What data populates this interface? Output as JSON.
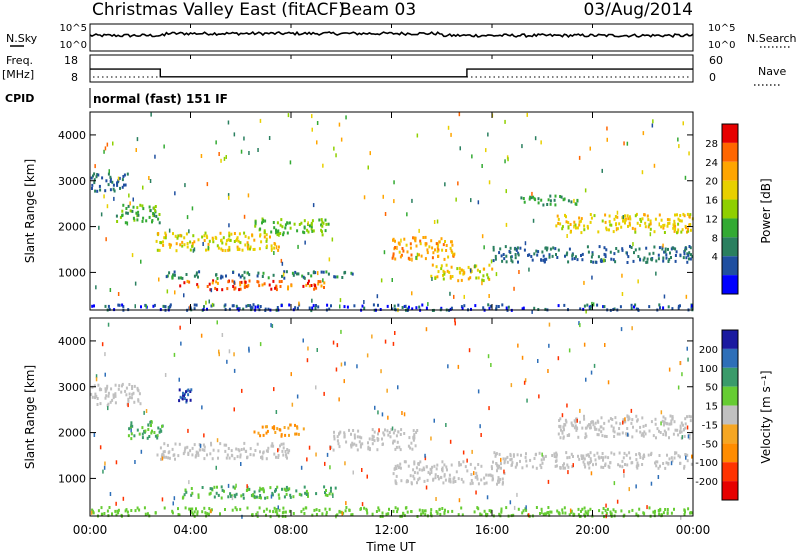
{
  "header": {
    "station": "Christmas Valley East (fitACF)",
    "beam": "Beam 03",
    "date": "03/Aug/2014"
  },
  "panels": {
    "nsky_label": "N.Sky",
    "nsky_ticks": [
      "10^5",
      "10^0"
    ],
    "nsearch_label": "N.Search",
    "nsearch_ticks": [
      "10^5",
      "10^0"
    ],
    "freq_label_line1": "Freq.",
    "freq_label_line2": "[MHz]",
    "freq_ticks": [
      "18",
      "8"
    ],
    "nave_label": "Nave",
    "nave_ticks": [
      "60",
      "0"
    ],
    "cpid_label": "CPID",
    "cpid_text": "normal (fast) 151 IF"
  },
  "power_colorbar": {
    "label": "Power [dB]",
    "ticks": [
      "28",
      "24",
      "20",
      "16",
      "12",
      "8",
      "4"
    ],
    "colors": [
      "#e60000",
      "#ff6600",
      "#ffa500",
      "#e8d000",
      "#8fd000",
      "#33aa33",
      "#2a7f5f",
      "#1f4fa0",
      "#0000ff"
    ]
  },
  "velocity_colorbar": {
    "label": "Velocity [m s⁻¹]",
    "ticks": [
      "200",
      "100",
      "50",
      "15",
      "-15",
      "-50",
      "-100",
      "-200"
    ],
    "colors": [
      "#1a1aa0",
      "#2e6fb8",
      "#3a9b6a",
      "#66cc33",
      "#c0c0c0",
      "#f5a623",
      "#ff8c00",
      "#ff3300",
      "#e60000"
    ]
  },
  "chart_data": {
    "type": "heatmap",
    "x_label": "Time UT",
    "x_ticks": [
      "00:00",
      "04:00",
      "08:00",
      "12:00",
      "16:00",
      "20:00",
      "00:00"
    ],
    "x_range_hours": [
      0,
      24
    ],
    "y_label": "Slant Range [km]",
    "y_ticks": [
      1000,
      2000,
      3000,
      4000
    ],
    "y_range_km": [
      180,
      4500
    ],
    "frequency_mhz": [
      {
        "start_h": 0,
        "end_h": 2.8,
        "value": 15
      },
      {
        "start_h": 2.8,
        "end_h": 15.0,
        "value": 10.5
      },
      {
        "start_h": 15.0,
        "end_h": 24,
        "value": 15
      }
    ],
    "power_bands": [
      {
        "h0": 0.0,
        "h1": 1.6,
        "r0": 2800,
        "r1": 3200,
        "db": 6
      },
      {
        "h0": 1.0,
        "h1": 2.8,
        "r0": 2100,
        "r1": 2500,
        "db": 12
      },
      {
        "h0": 2.6,
        "h1": 7.5,
        "r0": 1500,
        "r1": 1900,
        "db": 20
      },
      {
        "h0": 3.5,
        "h1": 9.5,
        "r0": 650,
        "r1": 850,
        "db": 28
      },
      {
        "h0": 3.0,
        "h1": 10.5,
        "r0": 900,
        "r1": 1050,
        "db": 8
      },
      {
        "h0": 6.5,
        "h1": 9.5,
        "r0": 1850,
        "r1": 2200,
        "db": 14
      },
      {
        "h0": 12.0,
        "h1": 14.5,
        "r0": 1300,
        "r1": 1800,
        "db": 24
      },
      {
        "h0": 13.5,
        "h1": 16.0,
        "r0": 850,
        "r1": 1200,
        "db": 20
      },
      {
        "h0": 16.0,
        "h1": 24.0,
        "r0": 1250,
        "r1": 1600,
        "db": 6
      },
      {
        "h0": 18.5,
        "h1": 24.0,
        "r0": 1900,
        "r1": 2300,
        "db": 20
      },
      {
        "h0": 17.0,
        "h1": 19.5,
        "r0": 2500,
        "r1": 2700,
        "db": 10
      },
      {
        "h0": 0.0,
        "h1": 24.0,
        "r0": 200,
        "r1": 330,
        "db": 4
      }
    ],
    "velocity_bands": [
      {
        "h0": 0.0,
        "h1": 2.0,
        "r0": 2600,
        "r1": 3100,
        "v": 0
      },
      {
        "h0": 1.5,
        "h1": 3.0,
        "r0": 1900,
        "r1": 2300,
        "v": 50
      },
      {
        "h0": 2.6,
        "h1": 8.0,
        "r0": 1450,
        "r1": 1800,
        "v": 0
      },
      {
        "h0": 3.5,
        "h1": 10.0,
        "r0": 600,
        "r1": 850,
        "v": 50
      },
      {
        "h0": 6.5,
        "h1": 8.5,
        "r0": 1950,
        "r1": 2200,
        "v": -50
      },
      {
        "h0": 9.5,
        "h1": 13.0,
        "r0": 1650,
        "r1": 2100,
        "v": 0
      },
      {
        "h0": 12.0,
        "h1": 16.5,
        "r0": 900,
        "r1": 1400,
        "v": 0
      },
      {
        "h0": 16.0,
        "h1": 24.0,
        "r0": 1250,
        "r1": 1600,
        "v": 0
      },
      {
        "h0": 18.5,
        "h1": 24.0,
        "r0": 1900,
        "r1": 2400,
        "v": 0
      },
      {
        "h0": 0.0,
        "h1": 24.0,
        "r0": 200,
        "r1": 400,
        "v": 30
      },
      {
        "h0": 3.5,
        "h1": 4.0,
        "r0": 2700,
        "r1": 3000,
        "v": 200
      }
    ]
  }
}
